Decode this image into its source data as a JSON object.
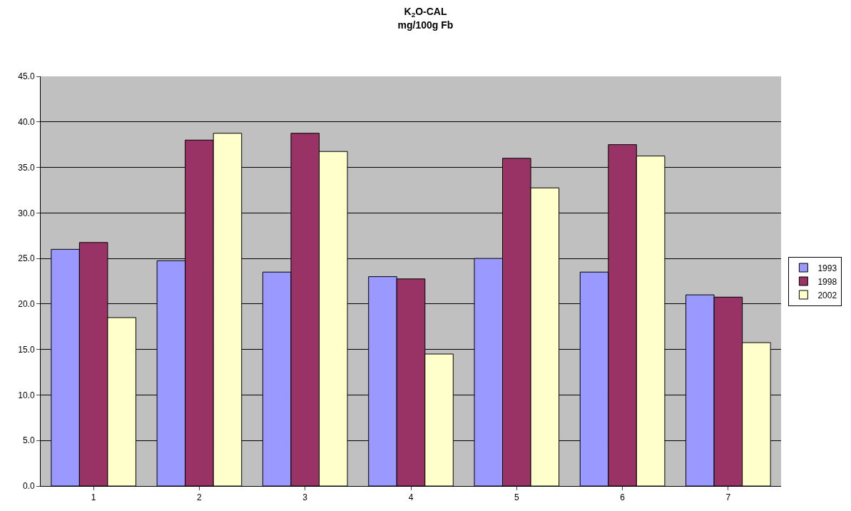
{
  "chart_data": {
    "type": "bar",
    "title": "K$_{2}$O-CAL",
    "subtitle": "mg/100g Fb",
    "categories": [
      "1",
      "2",
      "3",
      "4",
      "5",
      "6",
      "7"
    ],
    "series": [
      {
        "name": "1993",
        "color": "#9999ff",
        "values": [
          26.0,
          24.75,
          23.5,
          23.0,
          25.0,
          23.5,
          21.0
        ]
      },
      {
        "name": "1998",
        "color": "#993366",
        "values": [
          26.75,
          38.0,
          38.75,
          22.75,
          36.0,
          37.5,
          20.75
        ]
      },
      {
        "name": "2002",
        "color": "#ffffcc",
        "values": [
          18.5,
          38.75,
          36.75,
          14.5,
          32.75,
          36.25,
          15.75
        ]
      }
    ],
    "ylim": [
      0,
      45
    ],
    "yticks": [
      {
        "value": 0,
        "label": "0.0"
      },
      {
        "value": 5,
        "label": "5.0"
      },
      {
        "value": 10,
        "label": "10.0"
      },
      {
        "value": 15,
        "label": "15.0"
      },
      {
        "value": 20,
        "label": "20.0"
      },
      {
        "value": 25,
        "label": "25.0"
      },
      {
        "value": 30,
        "label": "30.0"
      },
      {
        "value": 35,
        "label": "35.0"
      },
      {
        "value": 40,
        "label": "40.0"
      },
      {
        "value": 45,
        "label": "45.0"
      }
    ],
    "grid": "y",
    "legend": "right"
  }
}
